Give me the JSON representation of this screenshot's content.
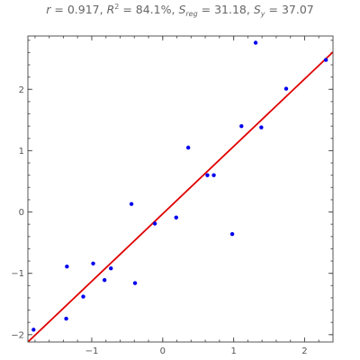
{
  "chart_data": {
    "type": "scatter",
    "title": {
      "r_label": "r",
      "r_value": "0.917",
      "r2_label": "R",
      "r2_sup": "2",
      "r2_value": "84.1%",
      "sreg_label": "S",
      "sreg_sub": "reg",
      "sreg_value": "31.18",
      "sy_label": "S",
      "sy_sub": "y",
      "sy_value": "37.07"
    },
    "xlabel": "",
    "ylabel": "",
    "xlim": [
      -1.9,
      2.4
    ],
    "ylim": [
      -2.12,
      2.87
    ],
    "x_ticks": [
      -1,
      0,
      1,
      2
    ],
    "x_tick_labels": [
      "−1",
      "0",
      "1",
      "2"
    ],
    "y_ticks": [
      -2,
      -1,
      0,
      1,
      2
    ],
    "y_tick_labels": [
      "−2",
      "−1",
      "0",
      "1",
      "2"
    ],
    "grid": false,
    "points": [
      {
        "x": -1.82,
        "y": -1.92
      },
      {
        "x": -1.35,
        "y": -0.89
      },
      {
        "x": -1.36,
        "y": -1.74
      },
      {
        "x": -1.12,
        "y": -1.38
      },
      {
        "x": -0.98,
        "y": -0.84
      },
      {
        "x": -0.82,
        "y": -1.11
      },
      {
        "x": -0.73,
        "y": -0.92
      },
      {
        "x": -0.44,
        "y": 0.13
      },
      {
        "x": -0.39,
        "y": -1.16
      },
      {
        "x": -0.11,
        "y": -0.19
      },
      {
        "x": 0.19,
        "y": -0.09
      },
      {
        "x": 0.36,
        "y": 1.05
      },
      {
        "x": 0.63,
        "y": 0.6
      },
      {
        "x": 0.72,
        "y": 0.6
      },
      {
        "x": 0.98,
        "y": -0.36
      },
      {
        "x": 1.11,
        "y": 1.4
      },
      {
        "x": 1.31,
        "y": 2.76
      },
      {
        "x": 1.39,
        "y": 1.38
      },
      {
        "x": 1.74,
        "y": 2.01
      },
      {
        "x": 2.3,
        "y": 2.48
      }
    ],
    "fit_line": {
      "slope": 1.1,
      "intercept": -0.03
    },
    "colors": {
      "points": "#0000ee",
      "fit_line": "#e00000",
      "frame": "#555555",
      "title": "#666666"
    }
  }
}
